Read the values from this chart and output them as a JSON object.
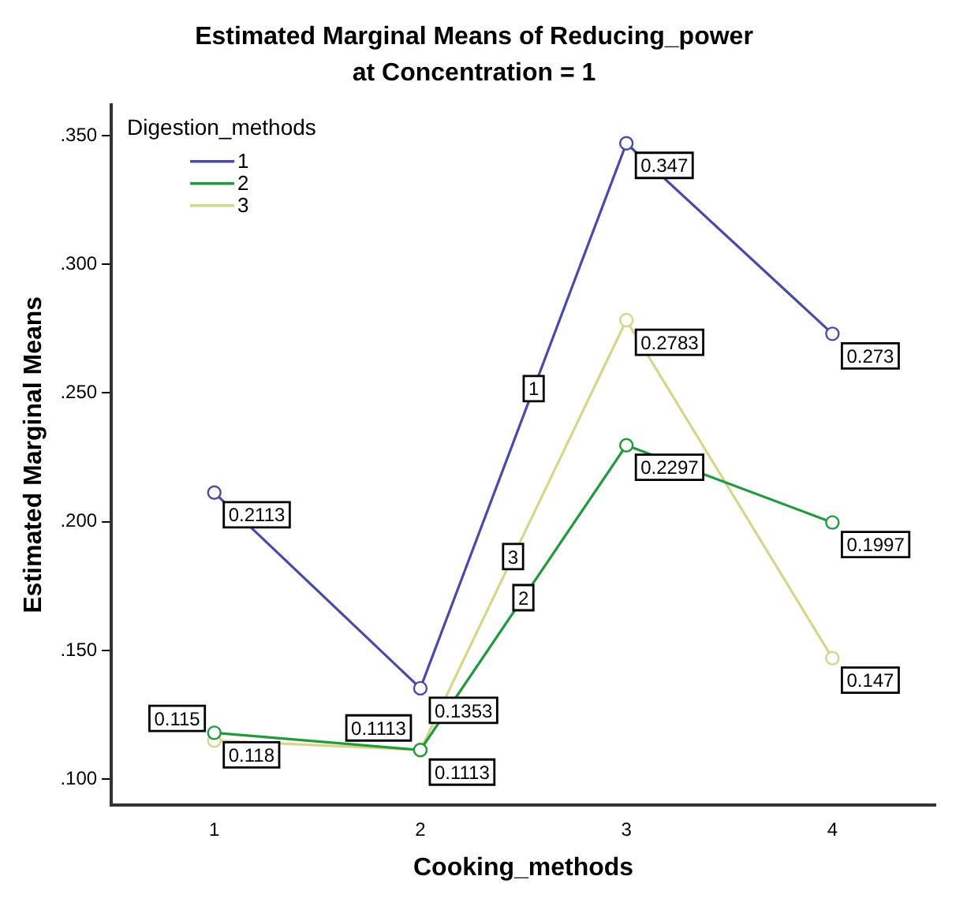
{
  "chart_data": {
    "type": "line",
    "title": "Estimated Marginal Means of Reducing_power",
    "subtitle": "at Concentration = 1",
    "xlabel": "Cooking_methods",
    "ylabel": "Estimated Marginal Means",
    "legend_title": "Digestion_methods",
    "categories": [
      "1",
      "2",
      "3",
      "4"
    ],
    "series": [
      {
        "name": "1",
        "color": "#4a4aa8",
        "values": [
          0.2113,
          0.1353,
          0.347,
          0.273
        ]
      },
      {
        "name": "2",
        "color": "#1f9a3c",
        "values": [
          0.118,
          0.1113,
          0.2297,
          0.1997
        ]
      },
      {
        "name": "3",
        "color": "#d6d68a",
        "values": [
          0.115,
          0.1113,
          0.2783,
          0.147
        ]
      }
    ],
    "ylim": [
      0.09,
      0.362
    ],
    "yticks": [
      {
        "value": 0.1,
        "label": ".100"
      },
      {
        "value": 0.15,
        "label": ".150"
      },
      {
        "value": 0.2,
        "label": ".200"
      },
      {
        "value": 0.25,
        "label": ".250"
      },
      {
        "value": 0.3,
        "label": ".300"
      },
      {
        "value": 0.35,
        "label": ".350"
      }
    ],
    "grid": false,
    "legend": "top left",
    "marker": "circle",
    "line_style": "solid",
    "data_labels": true
  }
}
